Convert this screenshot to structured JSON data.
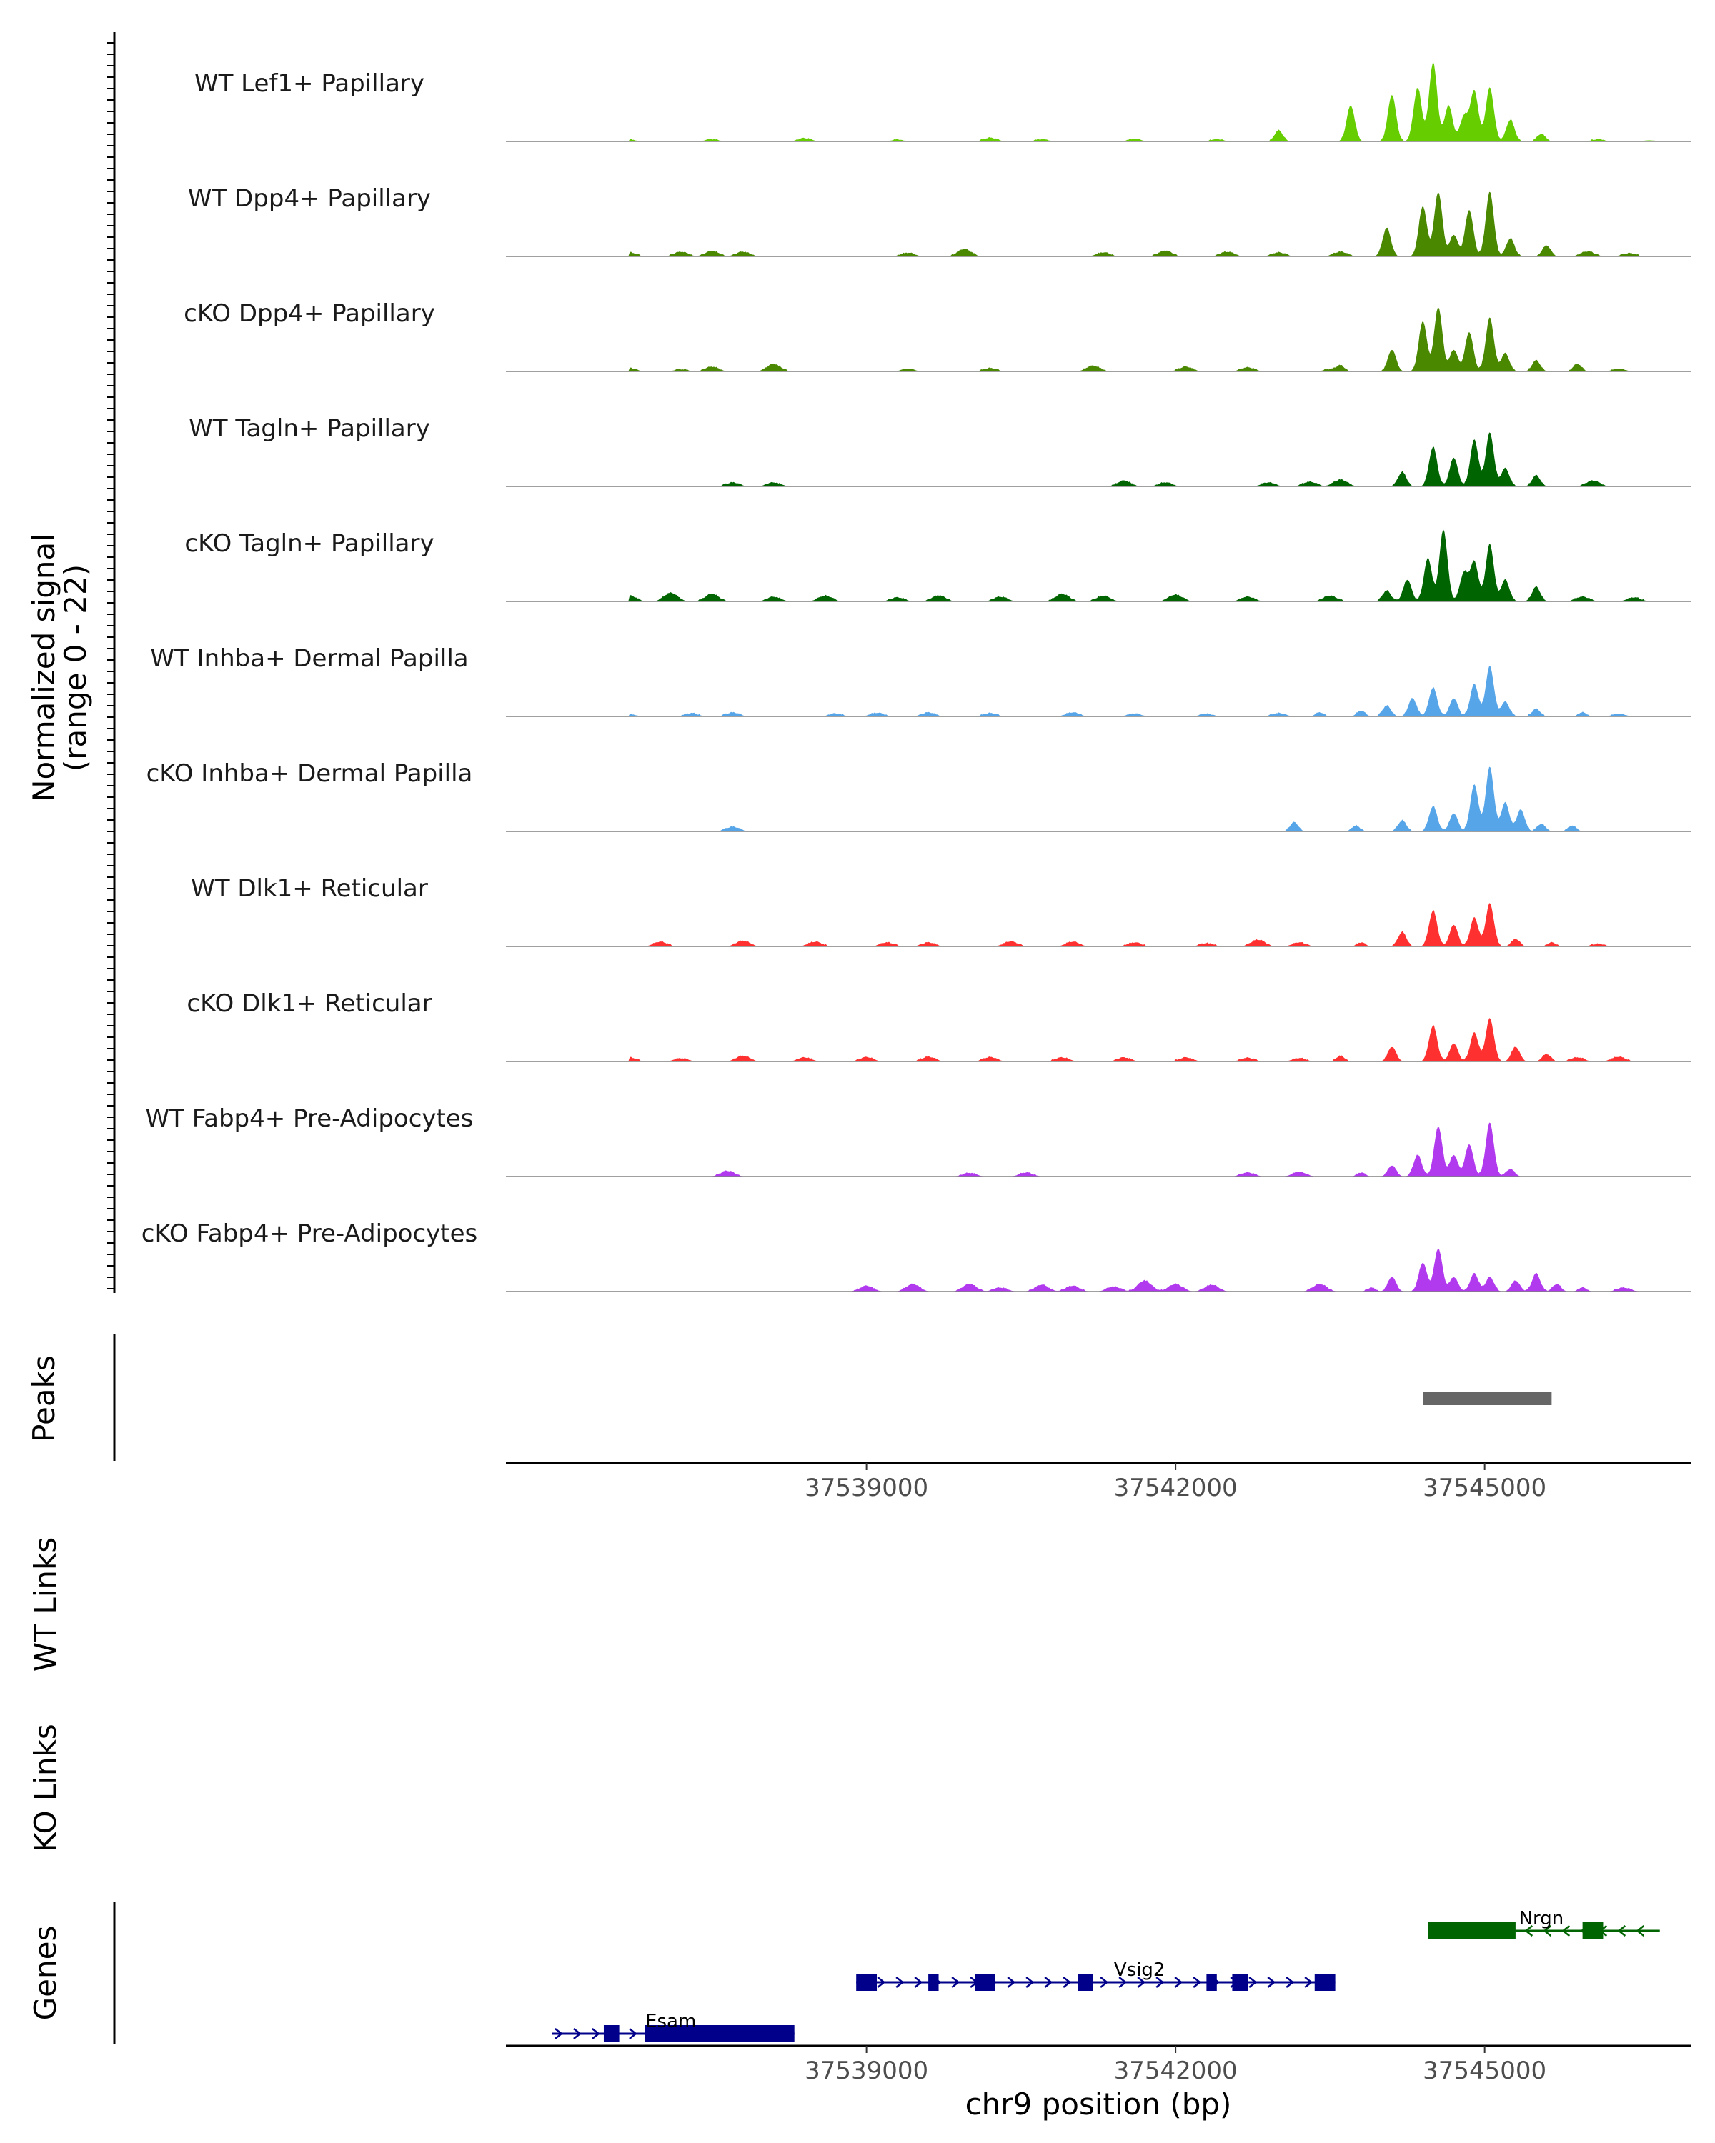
{
  "chart_data": {
    "type": "area",
    "kind": "genome-coverage-plot",
    "region_chrom": "chr9",
    "xlabel": "chr9 position (bp)",
    "xlim": [
      37535500,
      37547000
    ],
    "xticks": [
      37539000,
      37542000,
      37545000
    ],
    "xtick_labels": [
      "37539000",
      "37542000",
      "37545000"
    ],
    "ylabel_line1": "Normalized signal",
    "ylabel_line2": "(range 0 - 22)",
    "ylim": [
      0,
      22
    ],
    "grid": false,
    "tracks": [
      {
        "name": "WT Lef1+ Papillary",
        "color": "#66CD00",
        "peaks": [
          [
            37543000,
            3
          ],
          [
            37543700,
            10
          ],
          [
            37544100,
            13
          ],
          [
            37544350,
            15
          ],
          [
            37544500,
            22
          ],
          [
            37544650,
            10
          ],
          [
            37544800,
            7
          ],
          [
            37544900,
            14
          ],
          [
            37545050,
            15
          ],
          [
            37545250,
            6
          ],
          [
            37545550,
            2
          ]
        ],
        "background": [
          [
            37536700,
            0.4
          ],
          [
            37537500,
            0.5
          ],
          [
            37538400,
            0.8
          ],
          [
            37539300,
            0.4
          ],
          [
            37540200,
            0.9
          ],
          [
            37540700,
            0.5
          ],
          [
            37541600,
            0.6
          ],
          [
            37542400,
            0.5
          ],
          [
            37546100,
            0.5
          ],
          [
            37546600,
            0.3
          ]
        ]
      },
      {
        "name": "WT Dpp4+ Papillary",
        "color": "#4A8800",
        "peaks": [
          [
            37544050,
            8
          ],
          [
            37544400,
            14
          ],
          [
            37544550,
            18
          ],
          [
            37544700,
            6
          ],
          [
            37544850,
            13
          ],
          [
            37545050,
            18
          ],
          [
            37545250,
            5
          ],
          [
            37545600,
            3
          ]
        ],
        "background": [
          [
            37536700,
            1
          ],
          [
            37537200,
            1.2
          ],
          [
            37537500,
            1.4
          ],
          [
            37537800,
            1.2
          ],
          [
            37539400,
            0.9
          ],
          [
            37539950,
            2
          ],
          [
            37541300,
            1
          ],
          [
            37541900,
            1.5
          ],
          [
            37542500,
            1.2
          ],
          [
            37543000,
            1
          ],
          [
            37543600,
            1.2
          ],
          [
            37546000,
            1.3
          ],
          [
            37546400,
            0.8
          ]
        ]
      },
      {
        "name": "cKO Dpp4+ Papillary",
        "color": "#4A8800",
        "peaks": [
          [
            37543600,
            1.5
          ],
          [
            37544100,
            6
          ],
          [
            37544400,
            14
          ],
          [
            37544550,
            18
          ],
          [
            37544700,
            6
          ],
          [
            37544850,
            11
          ],
          [
            37545050,
            15
          ],
          [
            37545200,
            5
          ],
          [
            37545500,
            3
          ],
          [
            37545900,
            2
          ]
        ],
        "background": [
          [
            37536700,
            0.8
          ],
          [
            37537200,
            0.5
          ],
          [
            37537500,
            1.2
          ],
          [
            37538100,
            2
          ],
          [
            37539400,
            0.6
          ],
          [
            37540200,
            0.8
          ],
          [
            37541200,
            1.5
          ],
          [
            37542100,
            1.2
          ],
          [
            37542700,
            1
          ],
          [
            37543500,
            0.5
          ],
          [
            37546300,
            0.6
          ]
        ]
      },
      {
        "name": "WT Tagln+ Papillary",
        "color": "#006400",
        "peaks": [
          [
            37544200,
            4
          ],
          [
            37544500,
            11
          ],
          [
            37544700,
            8
          ],
          [
            37544900,
            13
          ],
          [
            37545050,
            15
          ],
          [
            37545200,
            5
          ],
          [
            37545500,
            3
          ]
        ],
        "background": [
          [
            37537700,
            1
          ],
          [
            37538100,
            1
          ],
          [
            37541500,
            1.5
          ],
          [
            37541900,
            1
          ],
          [
            37542900,
            1
          ],
          [
            37543300,
            1.2
          ],
          [
            37543600,
            1.8
          ],
          [
            37546050,
            1.5
          ]
        ]
      },
      {
        "name": "cKO Tagln+ Papillary",
        "color": "#006400",
        "peaks": [
          [
            37544050,
            3
          ],
          [
            37544250,
            6
          ],
          [
            37544450,
            12
          ],
          [
            37544600,
            20
          ],
          [
            37544800,
            8
          ],
          [
            37544900,
            11
          ],
          [
            37545050,
            16
          ],
          [
            37545200,
            6
          ],
          [
            37545500,
            4
          ]
        ],
        "background": [
          [
            37536700,
            1.5
          ],
          [
            37537100,
            2.3
          ],
          [
            37537500,
            2
          ],
          [
            37538100,
            1.2
          ],
          [
            37538600,
            1.5
          ],
          [
            37539300,
            1
          ],
          [
            37539700,
            1.6
          ],
          [
            37540300,
            1.2
          ],
          [
            37540900,
            2
          ],
          [
            37541300,
            1.5
          ],
          [
            37542000,
            1.8
          ],
          [
            37542700,
            1.2
          ],
          [
            37543500,
            1.5
          ],
          [
            37545950,
            1.2
          ],
          [
            37546450,
            1
          ]
        ]
      },
      {
        "name": "WT Inhba+ Dermal Papilla",
        "color": "#56A5E8",
        "peaks": [
          [
            37543400,
            1
          ],
          [
            37543800,
            1.5
          ],
          [
            37544050,
            3
          ],
          [
            37544300,
            5
          ],
          [
            37544500,
            8
          ],
          [
            37544700,
            5
          ],
          [
            37544900,
            9
          ],
          [
            37545050,
            14
          ],
          [
            37545200,
            4
          ],
          [
            37545500,
            2
          ],
          [
            37545950,
            1
          ]
        ],
        "background": [
          [
            37536700,
            0.5
          ],
          [
            37537300,
            0.8
          ],
          [
            37537700,
            1
          ],
          [
            37538700,
            0.7
          ],
          [
            37539100,
            0.9
          ],
          [
            37539600,
            1
          ],
          [
            37540200,
            0.8
          ],
          [
            37541000,
            1
          ],
          [
            37541600,
            0.7
          ],
          [
            37542300,
            0.6
          ],
          [
            37543000,
            0.8
          ],
          [
            37546300,
            0.6
          ]
        ]
      },
      {
        "name": "cKO Inhba+ Dermal Papilla",
        "color": "#56A5E8",
        "peaks": [
          [
            37543150,
            2.5
          ],
          [
            37543750,
            1.5
          ],
          [
            37544200,
            3
          ],
          [
            37544500,
            7
          ],
          [
            37544700,
            5
          ],
          [
            37544900,
            13
          ],
          [
            37545050,
            18
          ],
          [
            37545200,
            8
          ],
          [
            37545350,
            6
          ],
          [
            37545550,
            2
          ],
          [
            37545850,
            1.5
          ]
        ],
        "background": [
          [
            37537700,
            1.2
          ]
        ]
      },
      {
        "name": "WT Dlk1+ Reticular",
        "color": "#FF3030",
        "peaks": [
          [
            37543800,
            1
          ],
          [
            37544200,
            4
          ],
          [
            37544500,
            10
          ],
          [
            37544700,
            6
          ],
          [
            37544900,
            8
          ],
          [
            37545050,
            12
          ],
          [
            37545300,
            2
          ],
          [
            37545650,
            1
          ]
        ],
        "background": [
          [
            37537000,
            1.2
          ],
          [
            37537800,
            1.5
          ],
          [
            37538500,
            1.2
          ],
          [
            37539200,
            1
          ],
          [
            37539600,
            1
          ],
          [
            37540400,
            1.3
          ],
          [
            37541000,
            1.2
          ],
          [
            37541600,
            1
          ],
          [
            37542300,
            0.8
          ],
          [
            37542800,
            1.8
          ],
          [
            37543200,
            1
          ],
          [
            37546100,
            0.6
          ]
        ]
      },
      {
        "name": "cKO Dlk1+ Reticular",
        "color": "#FF3030",
        "peaks": [
          [
            37543600,
            1.5
          ],
          [
            37544100,
            4
          ],
          [
            37544500,
            10
          ],
          [
            37544700,
            5
          ],
          [
            37544900,
            8
          ],
          [
            37545050,
            12
          ],
          [
            37545300,
            4
          ],
          [
            37545600,
            2
          ]
        ],
        "background": [
          [
            37536700,
            1
          ],
          [
            37537200,
            0.8
          ],
          [
            37537800,
            1.5
          ],
          [
            37538400,
            1
          ],
          [
            37539000,
            1.1
          ],
          [
            37539600,
            1.2
          ],
          [
            37540200,
            1.1
          ],
          [
            37540900,
            1
          ],
          [
            37541500,
            1
          ],
          [
            37542100,
            1
          ],
          [
            37542700,
            0.9
          ],
          [
            37543200,
            0.8
          ],
          [
            37545900,
            1
          ],
          [
            37546300,
            1.2
          ]
        ]
      },
      {
        "name": "WT Fabp4+ Pre-Adipocytes",
        "color": "#B23AEE",
        "peaks": [
          [
            37543800,
            1
          ],
          [
            37544100,
            3
          ],
          [
            37544350,
            6
          ],
          [
            37544550,
            14
          ],
          [
            37544700,
            6
          ],
          [
            37544850,
            9
          ],
          [
            37545050,
            15
          ],
          [
            37545250,
            2
          ]
        ],
        "background": [
          [
            37537650,
            1.5
          ],
          [
            37540000,
            0.9
          ],
          [
            37540550,
            1
          ],
          [
            37542700,
            1
          ],
          [
            37543200,
            1.2
          ]
        ]
      },
      {
        "name": "cKO Fabp4+ Pre-Adipocytes",
        "color": "#B23AEE",
        "peaks": [
          [
            37543900,
            1
          ],
          [
            37544100,
            4
          ],
          [
            37544400,
            8
          ],
          [
            37544550,
            12
          ],
          [
            37544700,
            4
          ],
          [
            37544900,
            5
          ],
          [
            37545050,
            4
          ],
          [
            37545300,
            3
          ],
          [
            37545500,
            5
          ],
          [
            37545700,
            2
          ],
          [
            37545950,
            1
          ]
        ],
        "background": [
          [
            37539000,
            1.5
          ],
          [
            37539450,
            2
          ],
          [
            37540000,
            2
          ],
          [
            37540300,
            1
          ],
          [
            37540700,
            1.8
          ],
          [
            37541000,
            1.5
          ],
          [
            37541400,
            1.3
          ],
          [
            37541700,
            3
          ],
          [
            37542000,
            2
          ],
          [
            37542350,
            1.8
          ],
          [
            37543400,
            2
          ],
          [
            37546350,
            1
          ]
        ]
      }
    ],
    "peaks_track": {
      "label": "Peaks",
      "color": "#666666",
      "intervals": [
        [
          37544400,
          37545650
        ]
      ]
    },
    "link_tracks": [
      {
        "label": "WT Links"
      },
      {
        "label": "KO Links"
      }
    ],
    "genes_track": {
      "label": "Genes",
      "genes": [
        {
          "name": "Nrgn",
          "strand": "-",
          "color": "#006400",
          "start": 37544450,
          "end": 37546700,
          "exons": [
            [
              37544450,
              37545300
            ],
            [
              37545950,
              37546150
            ]
          ]
        },
        {
          "name": "Vsig2",
          "strand": "+",
          "color": "#00008B",
          "start": 37538900,
          "end": 37543550,
          "exons": [
            [
              37538900,
              37539100
            ],
            [
              37539600,
              37539700
            ],
            [
              37540050,
              37540250
            ],
            [
              37541050,
              37541200
            ],
            [
              37542300,
              37542400
            ],
            [
              37542550,
              37542700
            ],
            [
              37543350,
              37543550
            ]
          ]
        },
        {
          "name": "Esam",
          "strand": "+",
          "color": "#00008B",
          "start": 37535950,
          "end": 37538300,
          "exons": [
            [
              37536450,
              37536600
            ],
            [
              37536850,
              37538300
            ]
          ]
        }
      ]
    }
  }
}
